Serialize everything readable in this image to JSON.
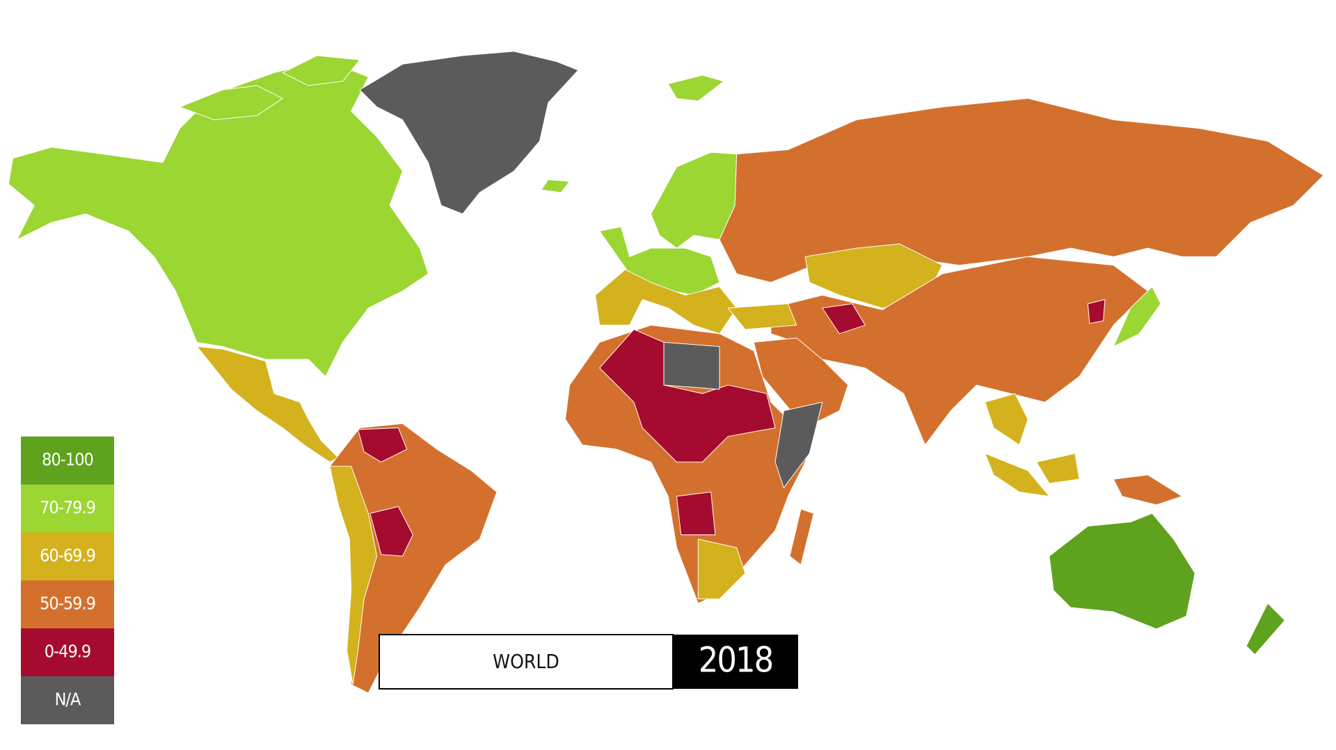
{
  "legend": {
    "items": [
      {
        "label": "80-100",
        "color": "#5ea21e"
      },
      {
        "label": "70-79.9",
        "color": "#9bd632"
      },
      {
        "label": "60-69.9",
        "color": "#d4b21e"
      },
      {
        "label": "50-59.9",
        "color": "#d4702e"
      },
      {
        "label": "0-49.9",
        "color": "#a50b2e"
      },
      {
        "label": "N/A",
        "color": "#5b5b5b"
      }
    ]
  },
  "selector": {
    "region": "WORLD",
    "year": "2018"
  }
}
